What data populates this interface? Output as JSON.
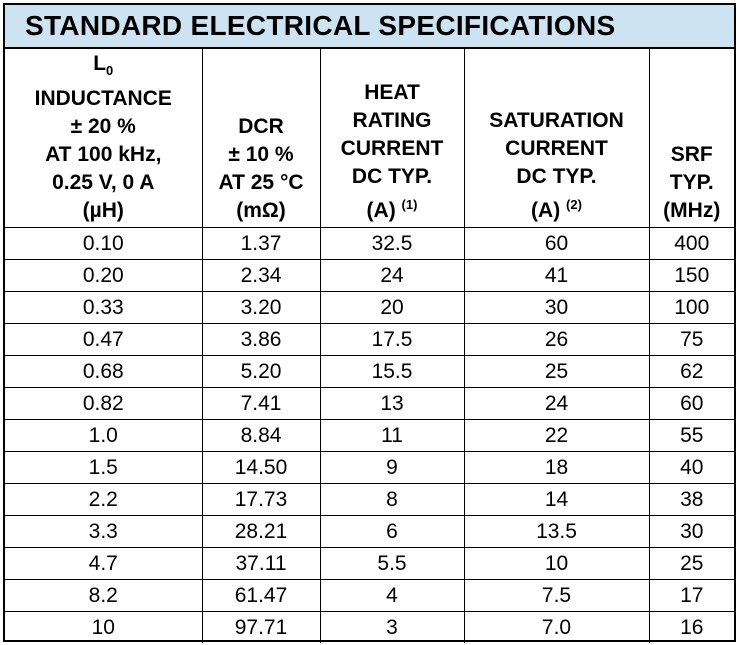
{
  "title": "STANDARD ELECTRICAL SPECIFICATIONS",
  "headers": {
    "inductance": {
      "symbol": "L",
      "subscript": "0",
      "lines": [
        "INDUCTANCE",
        "± 20 %",
        "AT 100 kHz,",
        "0.25 V, 0 A",
        "(µH)"
      ]
    },
    "dcr": {
      "lines": [
        "DCR",
        "± 10 %",
        "AT 25 °C",
        "(mΩ)"
      ]
    },
    "heat": {
      "lines": [
        "HEAT",
        "RATING",
        "CURRENT",
        "DC TYP."
      ],
      "unit": "(A)",
      "note": "(1)"
    },
    "saturation": {
      "lines": [
        "SATURATION",
        "CURRENT",
        "DC TYP."
      ],
      "unit": "(A)",
      "note": "(2)"
    },
    "srf": {
      "lines": [
        "SRF",
        "TYP.",
        "(MHz)"
      ]
    }
  },
  "rows": [
    [
      "0.10",
      "1.37",
      "32.5",
      "60",
      "400"
    ],
    [
      "0.20",
      "2.34",
      "24",
      "41",
      "150"
    ],
    [
      "0.33",
      "3.20",
      "20",
      "30",
      "100"
    ],
    [
      "0.47",
      "3.86",
      "17.5",
      "26",
      "75"
    ],
    [
      "0.68",
      "5.20",
      "15.5",
      "25",
      "62"
    ],
    [
      "0.82",
      "7.41",
      "13",
      "24",
      "60"
    ],
    [
      "1.0",
      "8.84",
      "11",
      "22",
      "55"
    ],
    [
      "1.5",
      "14.50",
      "9",
      "18",
      "40"
    ],
    [
      "2.2",
      "17.73",
      "8",
      "14",
      "38"
    ],
    [
      "3.3",
      "28.21",
      "6",
      "13.5",
      "30"
    ],
    [
      "4.7",
      "37.11",
      "5.5",
      "10",
      "25"
    ],
    [
      "8.2",
      "61.47",
      "4",
      "7.5",
      "17"
    ],
    [
      "10",
      "97.71",
      "3",
      "7.0",
      "16"
    ]
  ]
}
